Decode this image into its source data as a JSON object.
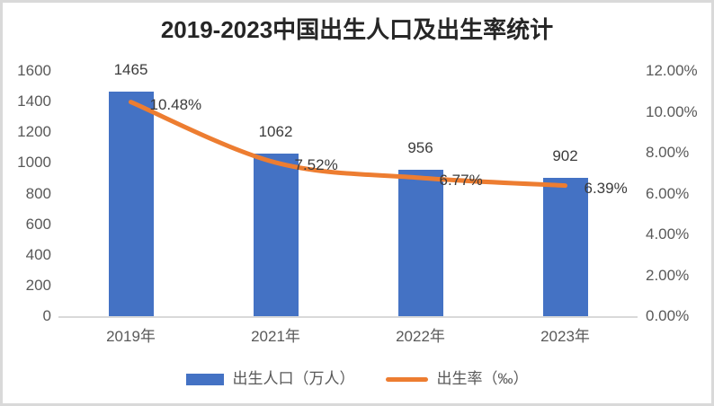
{
  "title": "2019-2023中国出生人口及出生率统计",
  "chart_data": {
    "type": "combo",
    "categories": [
      "2019年",
      "2021年",
      "2022年",
      "2023年"
    ],
    "series": [
      {
        "name": "出生人口（万人）",
        "type": "bar",
        "color": "#4472C4",
        "values": [
          1465,
          1062,
          956,
          902
        ],
        "labels": [
          "1465",
          "1062",
          "956",
          "902"
        ]
      },
      {
        "name": "出生率（‰）",
        "type": "line",
        "color": "#ED7D31",
        "values": [
          10.48,
          7.52,
          6.77,
          6.39
        ],
        "labels": [
          "10.48%",
          "7.52%",
          "6.77%",
          "6.39%"
        ]
      }
    ],
    "axis_left": {
      "min": 0,
      "max": 1600,
      "step": 200,
      "ticks_top_to_bottom": [
        "1600",
        "1400",
        "1200",
        "1000",
        "800",
        "600",
        "400",
        "200",
        "0"
      ]
    },
    "axis_right": {
      "min": 0,
      "max": 12,
      "step": 2,
      "ticks_top_to_bottom": [
        "12.00%",
        "10.00%",
        "8.00%",
        "6.00%",
        "4.00%",
        "2.00%",
        "0.00%"
      ]
    },
    "grid": false,
    "legend_position": "bottom"
  },
  "colors": {
    "bar": "#4472C4",
    "line": "#ED7D31",
    "axis_text": "#595959",
    "label_text": "#3B3B3B",
    "title_text": "#262626",
    "frame": "#D9D9D9"
  }
}
